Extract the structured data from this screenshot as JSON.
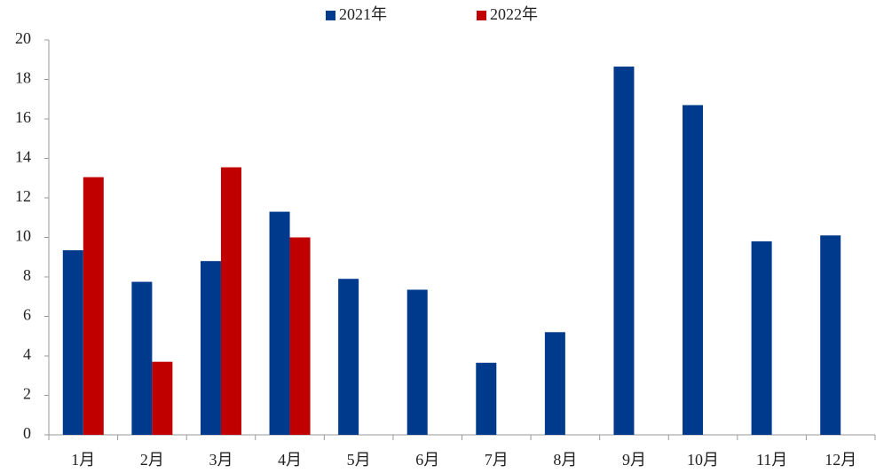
{
  "chart_data": {
    "type": "bar",
    "categories": [
      "1月",
      "2月",
      "3月",
      "4月",
      "5月",
      "6月",
      "7月",
      "8月",
      "9月",
      "10月",
      "11月",
      "12月"
    ],
    "series": [
      {
        "name": "2021年",
        "color": "#003a8c",
        "values": [
          9.35,
          7.75,
          8.8,
          11.3,
          7.9,
          7.35,
          3.65,
          5.2,
          18.65,
          16.7,
          9.8,
          10.1
        ]
      },
      {
        "name": "2022年",
        "color": "#c00000",
        "values": [
          13.05,
          3.7,
          13.55,
          10.0,
          null,
          null,
          null,
          null,
          null,
          null,
          null,
          null
        ]
      }
    ],
    "ylim": [
      0,
      20
    ],
    "yticks": [
      0,
      2,
      4,
      6,
      8,
      10,
      12,
      14,
      16,
      18,
      20
    ],
    "grid": false,
    "legend": "top"
  }
}
